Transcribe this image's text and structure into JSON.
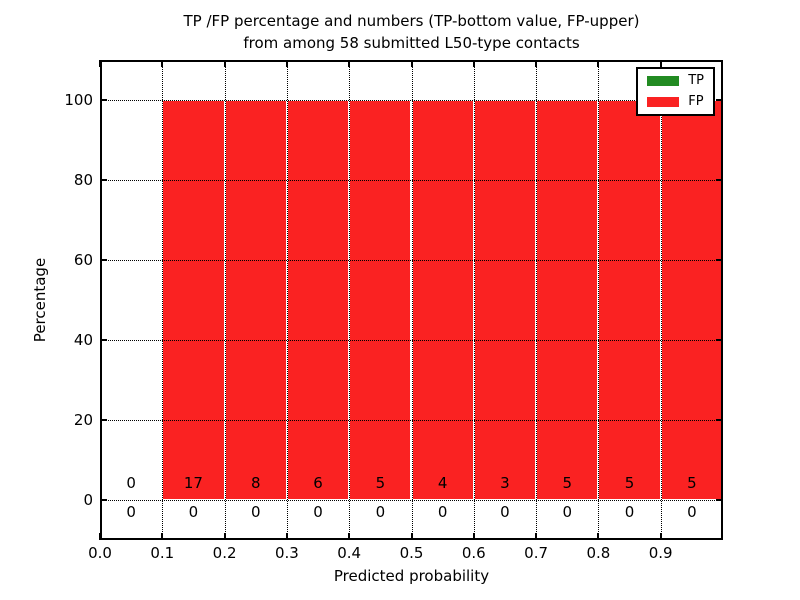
{
  "title": {
    "line1": "TP /FP percentage and numbers (TP-bottom value, FP-upper)",
    "line2": "from among 58 submitted L50-type contacts"
  },
  "chart_data": {
    "type": "bar",
    "subtype": "stacked-percentage-histogram",
    "title": "TP /FP percentage and numbers (TP-bottom value, FP-upper)\nfrom among 58 submitted L50-type contacts",
    "total_contacts": 58,
    "xlabel": "Predicted probability",
    "ylabel": "Percentage",
    "xlim": [
      0.0,
      1.0
    ],
    "ylim": [
      -10,
      110
    ],
    "x_ticks": [
      "0.0",
      "0.1",
      "0.2",
      "0.3",
      "0.4",
      "0.5",
      "0.6",
      "0.7",
      "0.8",
      "0.9"
    ],
    "y_ticks": [
      "0",
      "20",
      "40",
      "60",
      "80",
      "100"
    ],
    "bin_edges": [
      0.0,
      0.1,
      0.2,
      0.3,
      0.4,
      0.5,
      0.6,
      0.7,
      0.8,
      0.9,
      1.0
    ],
    "grid": {
      "show": true,
      "style": "dotted",
      "color": "#000000"
    },
    "legend_position": "upper-right",
    "series": [
      {
        "name": "TP",
        "color": "#228b22",
        "percent": [
          0,
          0,
          0,
          0,
          0,
          0,
          0,
          0,
          0,
          0
        ],
        "counts": [
          0,
          0,
          0,
          0,
          0,
          0,
          0,
          0,
          0,
          0
        ],
        "count_label_side": "below"
      },
      {
        "name": "FP",
        "color": "#fa2222",
        "percent": [
          0,
          100,
          100,
          100,
          100,
          100,
          100,
          100,
          100,
          100
        ],
        "counts": [
          0,
          17,
          8,
          6,
          5,
          4,
          3,
          5,
          5,
          5
        ],
        "count_label_side": "above"
      }
    ]
  }
}
